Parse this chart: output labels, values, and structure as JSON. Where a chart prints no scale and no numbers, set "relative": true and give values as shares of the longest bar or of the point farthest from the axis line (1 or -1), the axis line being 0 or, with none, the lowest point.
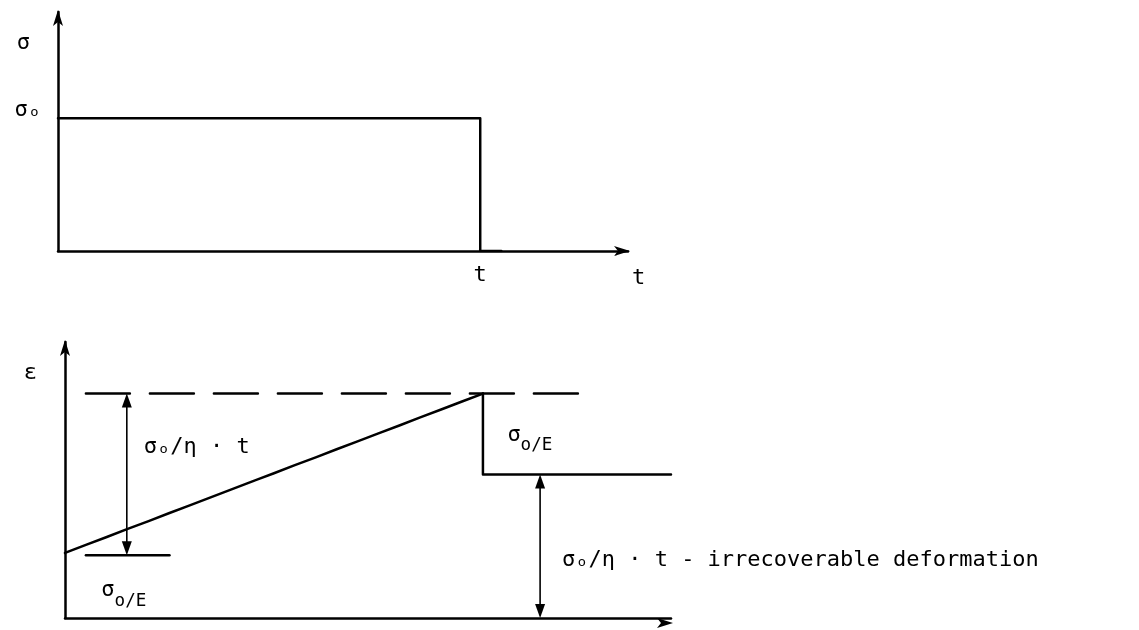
{
  "chart_data": [
    {
      "type": "step",
      "relative": true,
      "xlabel": "t",
      "ylabel": "σ",
      "color": "#000000",
      "categories": [
        null,
        null,
        null,
        null,
        null,
        null,
        null,
        null,
        null,
        null,
        null,
        null,
        null,
        null,
        null,
        null,
        null,
        null,
        null,
        null,
        null,
        null,
        null,
        null,
        null,
        null,
        null,
        null
      ],
      "values": [
        1,
        1,
        1,
        1,
        1,
        1,
        1,
        1,
        1,
        1,
        1,
        1,
        1,
        1,
        1,
        1,
        1,
        1,
        1,
        1,
        1,
        0,
        null,
        null,
        null,
        null,
        null,
        null
      ],
      "annotations": [
        "σₒ",
        "t"
      ]
    },
    {
      "type": "line",
      "relative": true,
      "ylabel": "ε",
      "categories": [
        null,
        null,
        null,
        null,
        null,
        null,
        null,
        null,
        null,
        null,
        null,
        null,
        null,
        null,
        null,
        null,
        null,
        null,
        null,
        null,
        null,
        null,
        null,
        null,
        null,
        null,
        null,
        null,
        null,
        null
      ],
      "series": [
        {
          "color": "#000000",
          "values": [
            0.29,
            0.326,
            0.361,
            0.397,
            0.432,
            0.468,
            0.503,
            0.539,
            0.574,
            0.61,
            0.645,
            0.681,
            0.716,
            0.752,
            0.787,
            0.823,
            0.858,
            0.894,
            0.929,
            0.965,
            1,
            null,
            null,
            null,
            null,
            null,
            null,
            null,
            null,
            null
          ]
        },
        {
          "type": "step",
          "color": "#000000",
          "values": [
            null,
            null,
            null,
            null,
            null,
            null,
            null,
            null,
            null,
            null,
            null,
            null,
            null,
            null,
            null,
            null,
            null,
            null,
            null,
            null,
            1,
            0.64,
            0.64,
            0.64,
            0.64,
            0.64,
            0.64,
            0.64,
            0.64,
            0.64
          ]
        },
        {
          "color": "#000000",
          "line_style": "dashed",
          "values": [
            null,
            1,
            1,
            1,
            1,
            1,
            1,
            1,
            1,
            1,
            1,
            1,
            1,
            1,
            1,
            1,
            1,
            1,
            1,
            1,
            1,
            1,
            1,
            1,
            1,
            1,
            null,
            null,
            null,
            null
          ]
        },
        {
          "color": "#000000",
          "values": [
            null,
            0.28,
            0.28,
            0.28,
            0.28,
            0.28,
            null,
            null,
            null,
            null,
            null,
            null,
            null,
            null,
            null,
            null,
            null,
            null,
            null,
            null,
            null,
            null,
            null,
            null,
            null,
            null,
            null,
            null,
            null,
            null
          ]
        }
      ],
      "annotations": [
        "σₒ/η · t",
        "σ$_{o/E}$",
        "σ$_{o/E}$",
        "σₒ/η · t - irrecoverable deformation"
      ]
    }
  ]
}
